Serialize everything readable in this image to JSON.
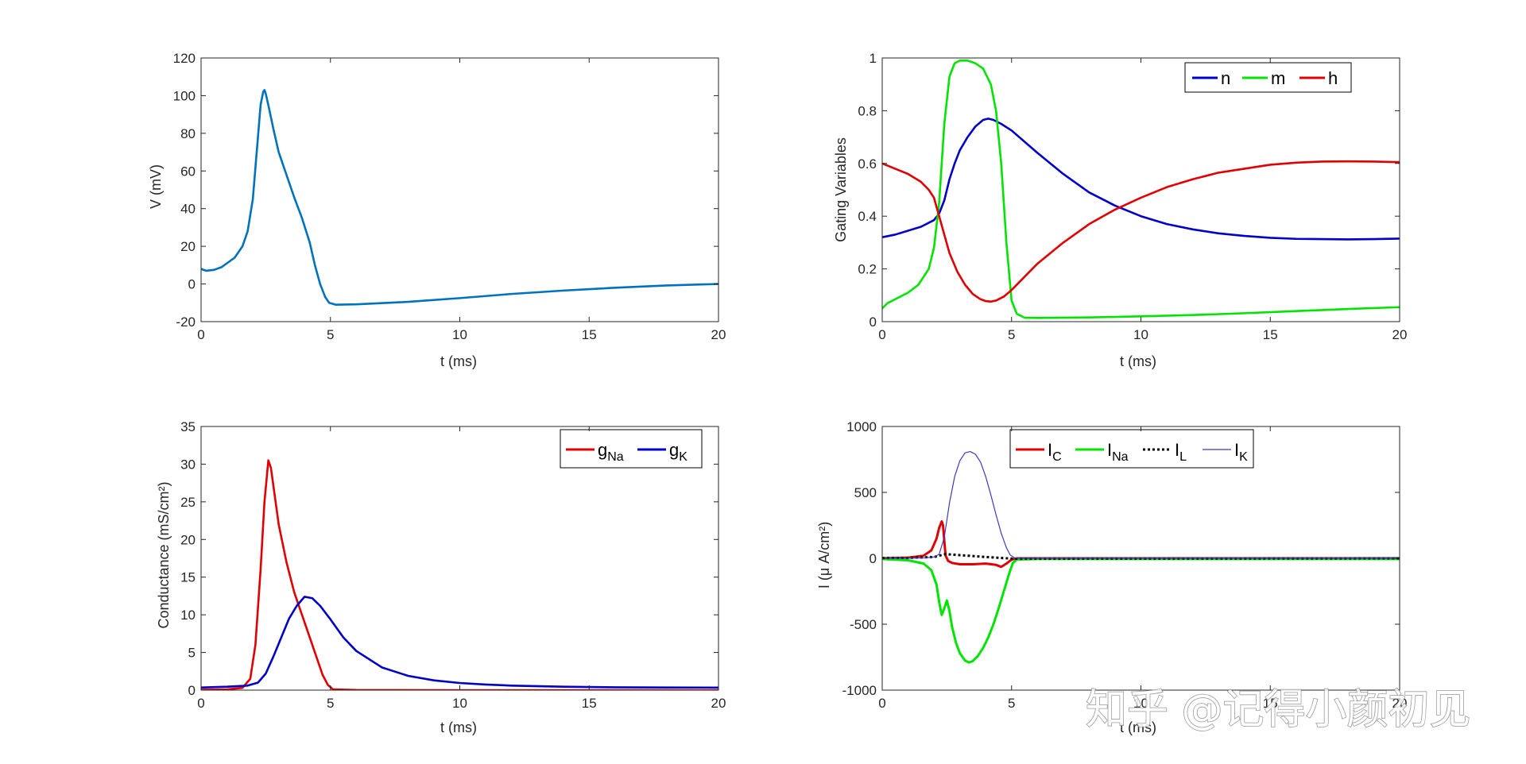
{
  "watermark": "知乎 @记得小颜初见",
  "chart_data": [
    {
      "type": "line",
      "xlabel": "t (ms)",
      "ylabel": "V (mV)",
      "xlim": [
        0,
        20
      ],
      "ylim": [
        -20,
        120
      ],
      "xticks": [
        0,
        5,
        10,
        15,
        20
      ],
      "yticks": [
        -20,
        0,
        20,
        40,
        60,
        80,
        100,
        120
      ],
      "grid": false,
      "legend": null,
      "series": [
        {
          "color": "#0072bd",
          "x": [
            0,
            0.2,
            0.5,
            0.8,
            1.0,
            1.3,
            1.6,
            1.8,
            2.0,
            2.15,
            2.3,
            2.4,
            2.45,
            2.5,
            2.6,
            2.8,
            3.0,
            3.3,
            3.6,
            3.9,
            4.2,
            4.4,
            4.6,
            4.8,
            4.95,
            5.2,
            6,
            8,
            10,
            12,
            14,
            16,
            18,
            20
          ],
          "y": [
            8,
            7,
            7.5,
            9,
            11,
            14,
            20,
            28,
            45,
            70,
            95,
            102,
            103,
            101,
            95,
            82,
            70,
            58,
            46,
            35,
            22,
            10,
            0,
            -7,
            -10,
            -11,
            -10.8,
            -9.5,
            -7.5,
            -5.3,
            -3.5,
            -2.0,
            -0.8,
            0
          ]
        }
      ]
    },
    {
      "type": "line",
      "xlabel": "t (ms)",
      "ylabel": "Gating Variables",
      "xlim": [
        0,
        20
      ],
      "ylim": [
        0,
        1
      ],
      "xticks": [
        0,
        5,
        10,
        15,
        20
      ],
      "yticks": [
        0,
        0.2,
        0.4,
        0.6,
        0.8,
        1
      ],
      "ytick_labels": [
        "0",
        "0.2",
        "0.4",
        "0.6",
        "0.8",
        "1"
      ],
      "grid": false,
      "legend": "top-right",
      "series": [
        {
          "name": "n",
          "color": "#0000c8",
          "x": [
            0,
            0.5,
            1,
            1.5,
            2,
            2.2,
            2.4,
            2.6,
            2.8,
            3.0,
            3.3,
            3.6,
            3.9,
            4.1,
            4.3,
            4.6,
            5,
            6,
            7,
            8,
            9,
            10,
            11,
            12,
            13,
            14,
            15,
            16,
            17,
            18,
            19,
            20
          ],
          "y": [
            0.32,
            0.33,
            0.345,
            0.36,
            0.385,
            0.41,
            0.46,
            0.54,
            0.6,
            0.65,
            0.7,
            0.74,
            0.765,
            0.77,
            0.765,
            0.75,
            0.725,
            0.64,
            0.56,
            0.49,
            0.44,
            0.4,
            0.37,
            0.35,
            0.335,
            0.325,
            0.318,
            0.314,
            0.313,
            0.312,
            0.313,
            0.315
          ]
        },
        {
          "name": "m",
          "color": "#00e400",
          "x": [
            0,
            0.2,
            0.6,
            1.0,
            1.4,
            1.8,
            2.0,
            2.2,
            2.4,
            2.6,
            2.8,
            3.0,
            3.3,
            3.6,
            3.9,
            4.2,
            4.4,
            4.6,
            4.8,
            5.0,
            5.2,
            5.5,
            6,
            8,
            10,
            12,
            14,
            16,
            18,
            20
          ],
          "y": [
            0.05,
            0.07,
            0.09,
            0.11,
            0.14,
            0.2,
            0.28,
            0.45,
            0.75,
            0.93,
            0.98,
            0.99,
            0.99,
            0.98,
            0.96,
            0.9,
            0.8,
            0.6,
            0.3,
            0.08,
            0.03,
            0.015,
            0.014,
            0.016,
            0.02,
            0.025,
            0.032,
            0.04,
            0.048,
            0.055
          ]
        },
        {
          "name": "h",
          "color": "#e00000",
          "x": [
            0,
            0.5,
            1,
            1.5,
            1.8,
            2.0,
            2.2,
            2.4,
            2.6,
            2.9,
            3.2,
            3.5,
            3.8,
            4.0,
            4.2,
            4.4,
            4.7,
            5.0,
            5.5,
            6,
            7,
            8,
            9,
            10,
            11,
            12,
            13,
            14,
            15,
            16,
            17,
            18,
            19,
            20
          ],
          "y": [
            0.6,
            0.58,
            0.56,
            0.53,
            0.5,
            0.47,
            0.4,
            0.33,
            0.26,
            0.19,
            0.14,
            0.105,
            0.085,
            0.078,
            0.076,
            0.08,
            0.095,
            0.12,
            0.17,
            0.22,
            0.3,
            0.37,
            0.425,
            0.47,
            0.51,
            0.54,
            0.565,
            0.58,
            0.595,
            0.603,
            0.607,
            0.608,
            0.607,
            0.605
          ]
        }
      ]
    },
    {
      "type": "line",
      "xlabel": "t (ms)",
      "ylabel": "Conductance (mS/cm²)",
      "xlim": [
        0,
        20
      ],
      "ylim": [
        0,
        35
      ],
      "xticks": [
        0,
        5,
        10,
        15,
        20
      ],
      "yticks": [
        0,
        5,
        10,
        15,
        20,
        25,
        30,
        35
      ],
      "grid": false,
      "legend": "top-right",
      "series": [
        {
          "name": "gNa",
          "color": "#e00000",
          "x": [
            0,
            1,
            1.6,
            1.9,
            2.1,
            2.3,
            2.45,
            2.6,
            2.7,
            2.8,
            3.0,
            3.3,
            3.6,
            3.9,
            4.2,
            4.5,
            4.7,
            4.9,
            5.1,
            6,
            10,
            15,
            20
          ],
          "y": [
            0.05,
            0.1,
            0.3,
            1.5,
            6,
            16,
            25,
            30.5,
            29.5,
            27,
            22,
            17,
            13,
            10,
            7,
            4,
            2,
            0.7,
            0.1,
            0.02,
            0,
            0,
            0
          ]
        },
        {
          "name": "gK",
          "color": "#0000c8",
          "x": [
            0,
            1,
            1.8,
            2.2,
            2.5,
            2.8,
            3.1,
            3.4,
            3.7,
            4.0,
            4.3,
            4.6,
            5.0,
            5.5,
            6,
            7,
            8,
            9,
            10,
            11,
            12,
            14,
            16,
            18,
            20
          ],
          "y": [
            0.35,
            0.45,
            0.6,
            1.0,
            2.2,
            4.5,
            7.0,
            9.5,
            11.2,
            12.4,
            12.2,
            11.2,
            9.4,
            7.0,
            5.2,
            3.0,
            1.9,
            1.3,
            0.95,
            0.75,
            0.6,
            0.45,
            0.38,
            0.35,
            0.34
          ]
        }
      ]
    },
    {
      "type": "line",
      "xlabel": "t (ms)",
      "ylabel": "I (μ A/cm²)",
      "xlim": [
        0,
        20
      ],
      "ylim": [
        -1000,
        1000
      ],
      "xticks": [
        0,
        5,
        10,
        15,
        20
      ],
      "yticks": [
        -1000,
        -500,
        0,
        500,
        1000
      ],
      "grid": false,
      "legend": "top-left",
      "series": [
        {
          "name": "IC",
          "color": "#e00000",
          "width": 3,
          "dash": "",
          "x": [
            0,
            1,
            1.6,
            1.9,
            2.1,
            2.2,
            2.3,
            2.35,
            2.4,
            2.45,
            2.55,
            2.7,
            3.0,
            3.5,
            4.0,
            4.4,
            4.6,
            4.8,
            5.0,
            5.2,
            6,
            20
          ],
          "y": [
            0,
            5,
            20,
            60,
            150,
            230,
            280,
            250,
            130,
            20,
            -20,
            -35,
            -45,
            -45,
            -40,
            -50,
            -65,
            -40,
            -10,
            0,
            0,
            0
          ]
        },
        {
          "name": "INa",
          "color": "#00e400",
          "width": 3,
          "dash": "",
          "x": [
            0,
            1,
            1.6,
            1.9,
            2.1,
            2.2,
            2.3,
            2.4,
            2.5,
            2.6,
            2.7,
            2.85,
            3.0,
            3.2,
            3.35,
            3.5,
            3.7,
            3.9,
            4.1,
            4.3,
            4.5,
            4.7,
            4.9,
            5.05,
            5.2,
            6,
            20
          ],
          "y": [
            -5,
            -15,
            -40,
            -90,
            -200,
            -330,
            -430,
            -380,
            -320,
            -400,
            -520,
            -640,
            -720,
            -775,
            -790,
            -780,
            -740,
            -680,
            -600,
            -500,
            -380,
            -250,
            -120,
            -35,
            -10,
            -5,
            -5
          ]
        },
        {
          "name": "IL",
          "color": "#000000",
          "width": 3,
          "dash": "3,3",
          "x": [
            0,
            1,
            2,
            2.45,
            3.0,
            3.5,
            4.0,
            4.5,
            5.0,
            5.2,
            6,
            20
          ],
          "y": [
            2.5,
            3,
            10,
            32,
            24,
            17,
            10,
            4,
            -2,
            -3,
            -3,
            0
          ]
        },
        {
          "name": "IK",
          "color": "#3b3bbf",
          "width": 1.2,
          "dash": "",
          "x": [
            0,
            1.5,
            2.0,
            2.2,
            2.4,
            2.6,
            2.8,
            3.0,
            3.2,
            3.4,
            3.6,
            3.8,
            4.0,
            4.2,
            4.4,
            4.6,
            4.8,
            4.95,
            5.1,
            5.3,
            6,
            20
          ],
          "y": [
            0,
            2,
            10,
            30,
            160,
            420,
            620,
            740,
            800,
            810,
            790,
            730,
            620,
            480,
            330,
            190,
            80,
            25,
            5,
            0,
            0,
            0
          ]
        }
      ]
    }
  ]
}
